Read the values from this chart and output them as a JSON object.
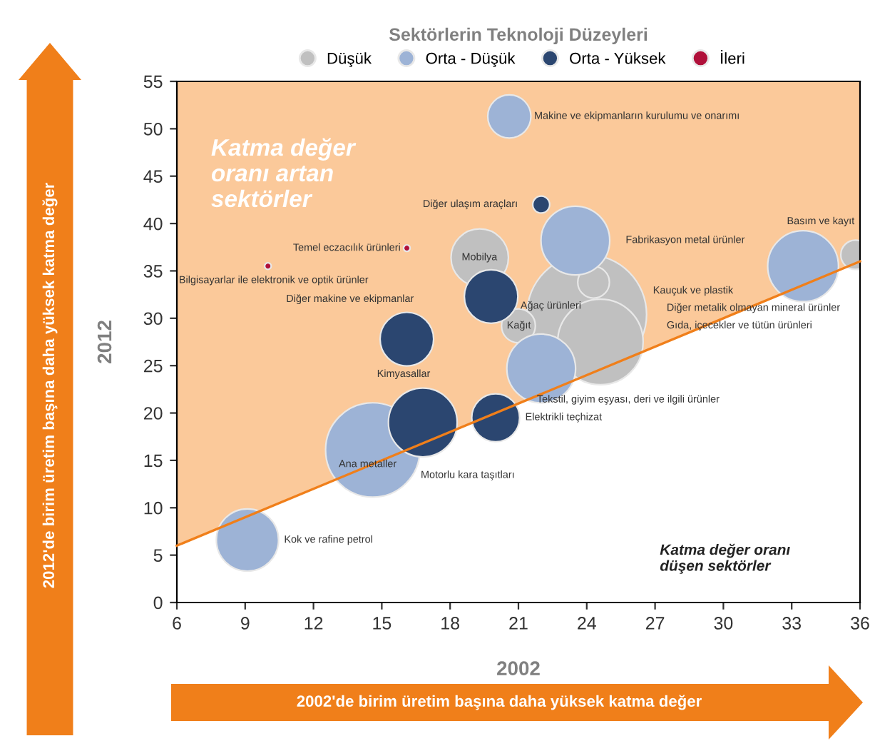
{
  "chart_data": {
    "type": "bubble",
    "xlabel": "2002",
    "ylabel": "2012",
    "legend_title": "Sektörlerin Teknoloji Düzeyleri",
    "legend": "top",
    "xlim": [
      6,
      36
    ],
    "xticks": [
      6,
      9,
      12,
      15,
      18,
      21,
      24,
      27,
      30,
      33,
      36
    ],
    "ylim": [
      0,
      55
    ],
    "yticks": [
      0,
      5,
      10,
      15,
      20,
      25,
      30,
      35,
      40,
      45,
      50,
      55
    ],
    "grid": false,
    "marker": "circle",
    "series": [
      {
        "type": "line",
        "color": "#f07f1a",
        "marker": "none",
        "x": [
          6,
          36
        ],
        "values": [
          6,
          36
        ],
        "lower": [
          6,
          36
        ],
        "upper": [
          55,
          55
        ]
      },
      {
        "name": "Düşük",
        "color": "#c0c0c0",
        "x": [
          24.0,
          19.3,
          21.0,
          24.3,
          24.6,
          35.8
        ],
        "values": [
          30.4,
          36.4,
          29.2,
          33.8,
          27.5,
          36.7
        ],
        "sizes": [
          1,
          0.23,
          0.08,
          0.07,
          0.51,
          0.06
        ]
      },
      {
        "name": "Orta - Düşük",
        "color": "#9db3d6",
        "x": [
          20.6,
          23.5,
          22.0,
          14.6,
          9.1,
          33.5
        ],
        "values": [
          51.3,
          38.2,
          24.7,
          16.1,
          6.6,
          35.5
        ],
        "sizes": [
          0.13,
          0.33,
          0.33,
          0.62,
          0.27,
          0.35
        ]
      },
      {
        "name": "Orta - Yüksek",
        "color": "#2b4670",
        "x": [
          22.0,
          19.8,
          16.1,
          16.8,
          20.0
        ],
        "values": [
          42.0,
          32.3,
          27.8,
          19.0,
          19.5
        ],
        "sizes": [
          0.02,
          0.2,
          0.2,
          0.33,
          0.16
        ]
      },
      {
        "name": "İleri",
        "color": "#b0103a",
        "x": [
          16.1,
          10.0
        ],
        "values": [
          37.4,
          35.5
        ],
        "sizes": [
          0.003,
          0.003
        ]
      }
    ],
    "annotations": [
      "Katma değer\noranı artan\nsektörler",
      "Katma değer oranı\ndüşen sektörler",
      "Makine ve ekipmanların kurulumu ve onarımı",
      "Diğer ulaşım araçları",
      "Fabrikasyon metal ürünler",
      "Temel eczacılık ürünleri",
      "Bilgisayarlar ile elektronik ve optik ürünler",
      "Mobilya",
      "Diğer makine ve ekipmanlar",
      "Kağıt",
      "Ağaç ürünleri",
      "Kauçuk ve plastik",
      "Diğer metalik olmayan mineral ürünler",
      "Gıda, içecekler ve tütün ürünleri",
      "Basım ve kayıt",
      "Kimyasallar",
      "Tekstil, giyim eşyası, deri ve ilgili ürünler",
      "Elektrikli teçhizat",
      "Ana metaller",
      "Motorlu kara taşıtları",
      "Kok ve rafine petrol",
      "2012'de birim üretim başına daha yüksek katma değer",
      "2002'de birim üretim başına daha yüksek katma değer"
    ]
  }
}
